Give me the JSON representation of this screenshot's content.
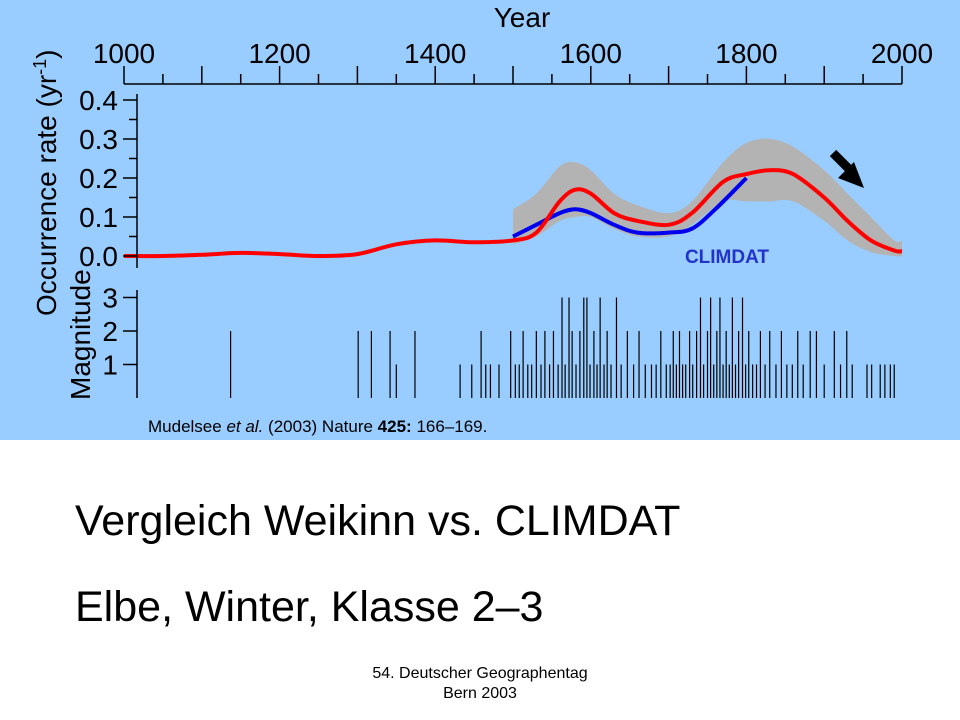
{
  "chart_data": {
    "type": "line",
    "top_axis": {
      "label": "Year",
      "ticks": [
        1000,
        1200,
        1400,
        1600,
        1800,
        2000
      ],
      "tick_labels": [
        "1000",
        "1200",
        "1400",
        "1600",
        "1800",
        "2000"
      ],
      "range": [
        1000,
        2000
      ]
    },
    "occurrence_panel": {
      "ylabel_prefix": "Occurrence rate (yr",
      "ylabel_sup": "-1",
      "ylabel_suffix": ")",
      "ylim": [
        0,
        0.4
      ],
      "ticks": [
        0.0,
        0.1,
        0.2,
        0.3,
        0.4
      ],
      "tick_labels": [
        "0.0",
        "0.1",
        "0.2",
        "0.3",
        "0.4"
      ],
      "series": [
        {
          "color": "#ff0000",
          "x": [
            1000,
            1050,
            1100,
            1150,
            1200,
            1250,
            1300,
            1350,
            1400,
            1450,
            1500,
            1530,
            1560,
            1580,
            1600,
            1630,
            1660,
            1700,
            1730,
            1770,
            1800,
            1830,
            1860,
            1900,
            1930,
            1960,
            1990,
            2000
          ],
          "y": [
            0.0,
            0.0,
            0.003,
            0.008,
            0.005,
            0.0,
            0.005,
            0.03,
            0.04,
            0.035,
            0.04,
            0.06,
            0.14,
            0.17,
            0.16,
            0.11,
            0.09,
            0.08,
            0.11,
            0.19,
            0.21,
            0.22,
            0.21,
            0.15,
            0.09,
            0.04,
            0.014,
            0.012
          ]
        },
        {
          "name": "CLIMDAT",
          "color": "#0000ee",
          "x": [
            1500,
            1530,
            1560,
            1580,
            1600,
            1630,
            1660,
            1700,
            1730,
            1760,
            1800
          ],
          "y": [
            0.05,
            0.08,
            0.11,
            0.12,
            0.11,
            0.08,
            0.06,
            0.06,
            0.07,
            0.12,
            0.2
          ]
        }
      ],
      "confidence_band": {
        "color": "#b3b3b3",
        "x": [
          1500,
          1530,
          1560,
          1580,
          1600,
          1630,
          1660,
          1700,
          1730,
          1770,
          1800,
          1830,
          1860,
          1900,
          1930,
          1960,
          1990,
          2000
        ],
        "upper": [
          0.12,
          0.16,
          0.23,
          0.24,
          0.22,
          0.16,
          0.13,
          0.11,
          0.14,
          0.24,
          0.29,
          0.3,
          0.28,
          0.22,
          0.16,
          0.1,
          0.04,
          0.04
        ],
        "lower": [
          0.03,
          0.05,
          0.09,
          0.1,
          0.1,
          0.07,
          0.05,
          0.05,
          0.08,
          0.14,
          0.14,
          0.14,
          0.14,
          0.09,
          0.04,
          0.01,
          0.0,
          0.0
        ]
      }
    },
    "magnitude_panel": {
      "ylabel": "Magnitude",
      "ylim": [
        0,
        3.3
      ],
      "ticks": [
        1,
        2,
        3
      ],
      "tick_labels": [
        "1",
        "2",
        "3"
      ],
      "events": [
        {
          "x": 1137,
          "m": 2
        },
        {
          "x": 1301,
          "m": 2
        },
        {
          "x": 1318,
          "m": 2
        },
        {
          "x": 1342,
          "m": 2
        },
        {
          "x": 1350,
          "m": 1
        },
        {
          "x": 1374,
          "m": 2
        },
        {
          "x": 1432,
          "m": 1
        },
        {
          "x": 1447,
          "m": 1
        },
        {
          "x": 1459,
          "m": 2
        },
        {
          "x": 1465,
          "m": 1
        },
        {
          "x": 1471,
          "m": 1
        },
        {
          "x": 1482,
          "m": 1
        },
        {
          "x": 1497,
          "m": 2
        },
        {
          "x": 1503,
          "m": 1
        },
        {
          "x": 1508,
          "m": 1
        },
        {
          "x": 1513,
          "m": 2
        },
        {
          "x": 1519,
          "m": 1
        },
        {
          "x": 1524,
          "m": 1
        },
        {
          "x": 1530,
          "m": 2
        },
        {
          "x": 1536,
          "m": 1
        },
        {
          "x": 1541,
          "m": 2
        },
        {
          "x": 1547,
          "m": 1
        },
        {
          "x": 1552,
          "m": 2
        },
        {
          "x": 1558,
          "m": 1
        },
        {
          "x": 1563,
          "m": 3
        },
        {
          "x": 1567,
          "m": 1
        },
        {
          "x": 1572,
          "m": 3
        },
        {
          "x": 1576,
          "m": 2
        },
        {
          "x": 1581,
          "m": 1
        },
        {
          "x": 1586,
          "m": 2
        },
        {
          "x": 1591,
          "m": 3
        },
        {
          "x": 1595,
          "m": 3
        },
        {
          "x": 1599,
          "m": 1
        },
        {
          "x": 1604,
          "m": 2
        },
        {
          "x": 1608,
          "m": 1
        },
        {
          "x": 1612,
          "m": 3
        },
        {
          "x": 1617,
          "m": 1
        },
        {
          "x": 1621,
          "m": 2
        },
        {
          "x": 1626,
          "m": 1
        },
        {
          "x": 1633,
          "m": 3
        },
        {
          "x": 1639,
          "m": 1
        },
        {
          "x": 1647,
          "m": 2
        },
        {
          "x": 1655,
          "m": 1
        },
        {
          "x": 1662,
          "m": 2
        },
        {
          "x": 1670,
          "m": 1
        },
        {
          "x": 1678,
          "m": 1
        },
        {
          "x": 1684,
          "m": 1
        },
        {
          "x": 1690,
          "m": 2
        },
        {
          "x": 1697,
          "m": 1
        },
        {
          "x": 1702,
          "m": 1
        },
        {
          "x": 1706,
          "m": 2
        },
        {
          "x": 1710,
          "m": 1
        },
        {
          "x": 1714,
          "m": 2
        },
        {
          "x": 1718,
          "m": 1
        },
        {
          "x": 1722,
          "m": 1
        },
        {
          "x": 1727,
          "m": 2
        },
        {
          "x": 1731,
          "m": 1
        },
        {
          "x": 1736,
          "m": 2
        },
        {
          "x": 1741,
          "m": 3
        },
        {
          "x": 1745,
          "m": 1
        },
        {
          "x": 1750,
          "m": 2
        },
        {
          "x": 1754,
          "m": 3
        },
        {
          "x": 1758,
          "m": 1
        },
        {
          "x": 1762,
          "m": 2
        },
        {
          "x": 1766,
          "m": 3
        },
        {
          "x": 1770,
          "m": 1
        },
        {
          "x": 1774,
          "m": 2
        },
        {
          "x": 1778,
          "m": 1
        },
        {
          "x": 1782,
          "m": 3
        },
        {
          "x": 1786,
          "m": 1
        },
        {
          "x": 1790,
          "m": 2
        },
        {
          "x": 1795,
          "m": 3
        },
        {
          "x": 1799,
          "m": 1
        },
        {
          "x": 1803,
          "m": 2
        },
        {
          "x": 1808,
          "m": 1
        },
        {
          "x": 1813,
          "m": 1
        },
        {
          "x": 1818,
          "m": 2
        },
        {
          "x": 1824,
          "m": 1
        },
        {
          "x": 1830,
          "m": 2
        },
        {
          "x": 1838,
          "m": 1
        },
        {
          "x": 1845,
          "m": 2
        },
        {
          "x": 1852,
          "m": 1
        },
        {
          "x": 1859,
          "m": 1
        },
        {
          "x": 1866,
          "m": 2
        },
        {
          "x": 1873,
          "m": 1
        },
        {
          "x": 1882,
          "m": 2
        },
        {
          "x": 1890,
          "m": 2
        },
        {
          "x": 1900,
          "m": 1
        },
        {
          "x": 1913,
          "m": 2
        },
        {
          "x": 1921,
          "m": 1
        },
        {
          "x": 1929,
          "m": 2
        },
        {
          "x": 1936,
          "m": 1
        },
        {
          "x": 1955,
          "m": 1
        },
        {
          "x": 1961,
          "m": 1
        },
        {
          "x": 1972,
          "m": 1
        },
        {
          "x": 1978,
          "m": 1
        },
        {
          "x": 1985,
          "m": 1
        },
        {
          "x": 1990,
          "m": 1
        }
      ]
    },
    "annotations": {
      "climdat_label": "CLIMDAT",
      "arrow_direction": "down-right"
    }
  },
  "citation": {
    "authors": "Mudelsee",
    "etal": "et al.",
    "year": "(2003) Nature",
    "volume": "425:",
    "pages": "166–169."
  },
  "slide": {
    "title_line1": "Vergleich Weikinn vs. CLIMDAT",
    "title_line2": "Elbe, Winter, Klasse 2–3",
    "footer_line1": "54. Deutscher Geographentag",
    "footer_line2": "Bern 2003"
  },
  "colors": {
    "figure_background": "#99ccff",
    "red_series": "#ff0000",
    "blue_series": "#0000ee",
    "band": "#b3b3b3",
    "climdat_label": "#2233cc"
  }
}
